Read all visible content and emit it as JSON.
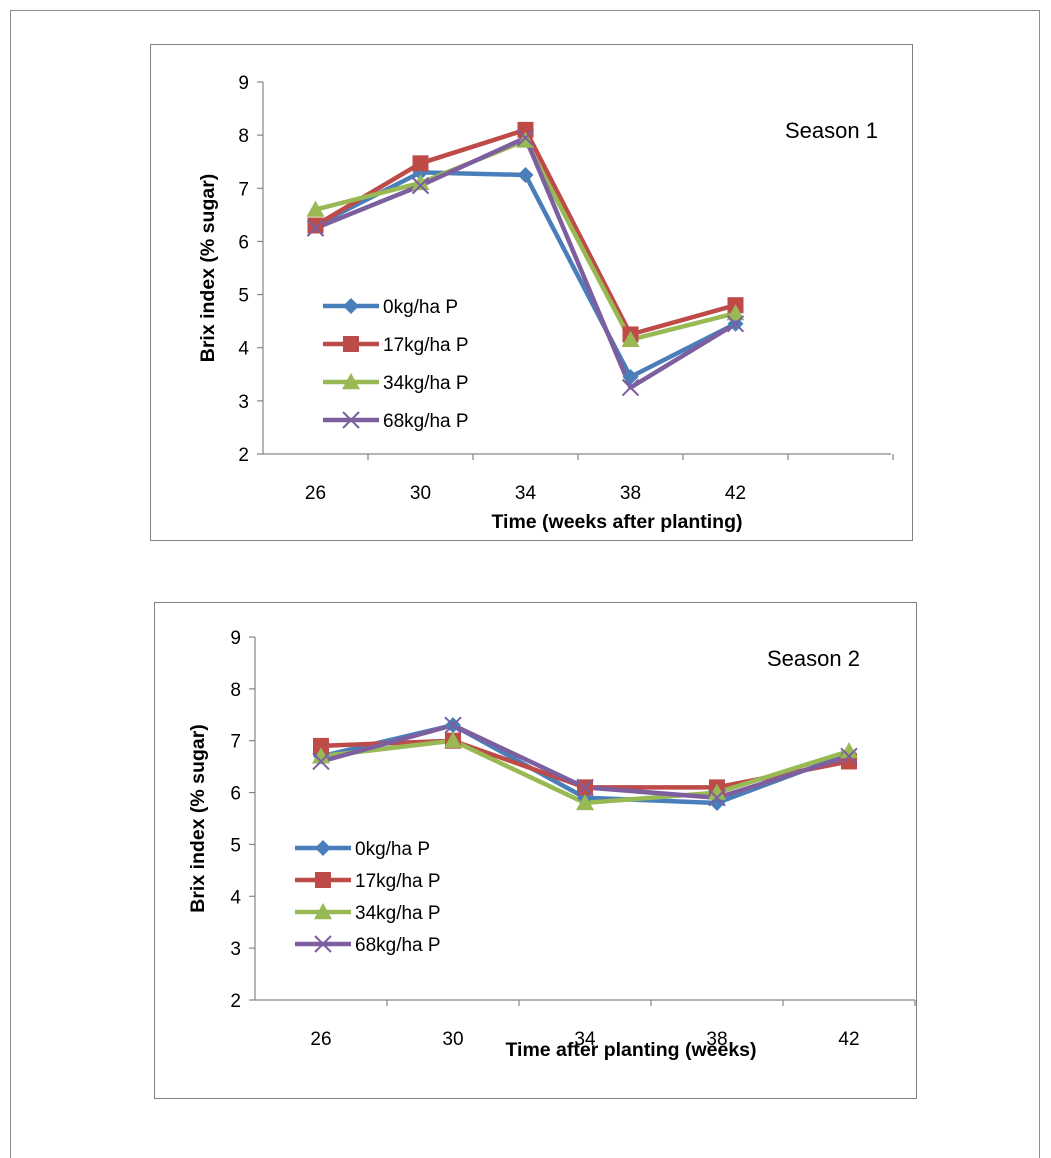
{
  "chart_data": [
    {
      "type": "line",
      "annotation": "Season 1",
      "xlabel": "Time (weeks after planting)",
      "ylabel": "Brix index (% sugar)",
      "categories": [
        "26",
        "30",
        "34",
        "38",
        "42"
      ],
      "ylim": [
        2,
        9
      ],
      "yticks": [
        "2",
        "3",
        "4",
        "5",
        "6",
        "7",
        "8",
        "9"
      ],
      "grid": false,
      "legend_position": "left-inside",
      "series": [
        {
          "name": "0kg/ha P",
          "color": "#4a7ebb",
          "marker": "diamond",
          "values": [
            6.3,
            7.3,
            7.25,
            3.45,
            4.45
          ]
        },
        {
          "name": "17kg/ha P",
          "color": "#be4b48",
          "marker": "square",
          "values": [
            6.3,
            7.47,
            8.1,
            4.25,
            4.8
          ]
        },
        {
          "name": "34kg/ha P",
          "color": "#98b954",
          "marker": "triangle",
          "values": [
            6.6,
            7.1,
            7.9,
            4.15,
            4.65
          ]
        },
        {
          "name": "68kg/ha P",
          "color": "#7d5fa0",
          "marker": "x",
          "values": [
            6.25,
            7.05,
            7.95,
            3.25,
            4.45
          ]
        }
      ]
    },
    {
      "type": "line",
      "annotation": "Season 2",
      "xlabel": "Time after planting (weeks)",
      "ylabel": "Brix index (% sugar)",
      "categories": [
        "26",
        "30",
        "34",
        "38",
        "42"
      ],
      "ylim": [
        2,
        9
      ],
      "yticks": [
        "2",
        "3",
        "4",
        "5",
        "6",
        "7",
        "8",
        "9"
      ],
      "grid": false,
      "legend_position": "left-inside",
      "series": [
        {
          "name": "0kg/ha P",
          "color": "#4a7ebb",
          "marker": "diamond",
          "values": [
            6.7,
            7.3,
            5.9,
            5.8,
            6.75
          ]
        },
        {
          "name": "17kg/ha P",
          "color": "#be4b48",
          "marker": "square",
          "values": [
            6.9,
            7.0,
            6.1,
            6.1,
            6.6
          ]
        },
        {
          "name": "34kg/ha P",
          "color": "#98b954",
          "marker": "triangle",
          "values": [
            6.7,
            7.0,
            5.8,
            6.0,
            6.8
          ]
        },
        {
          "name": "68kg/ha P",
          "color": "#7d5fa0",
          "marker": "x",
          "values": [
            6.6,
            7.3,
            6.1,
            5.9,
            6.7
          ]
        }
      ]
    }
  ]
}
